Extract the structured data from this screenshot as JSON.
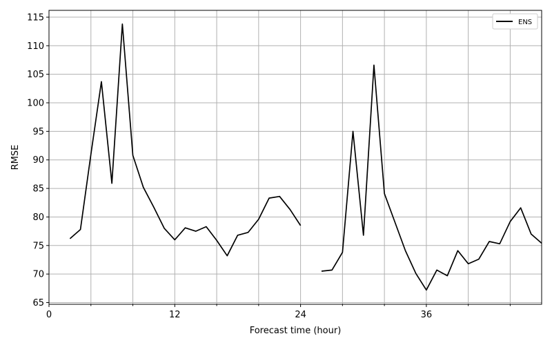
{
  "chart_data": {
    "type": "line",
    "title": "",
    "xlabel": "Forecast time (hour)",
    "ylabel": "RMSE",
    "xlim": [
      0,
      47
    ],
    "ylim": [
      64.7,
      116.2
    ],
    "xticks": [
      0,
      12,
      24,
      36
    ],
    "xticks_minor": [
      4,
      8,
      16,
      20,
      28,
      32,
      40,
      44
    ],
    "yticks": [
      65,
      70,
      75,
      80,
      85,
      90,
      95,
      100,
      105,
      110,
      115
    ],
    "grid": true,
    "legend_position": "top-right",
    "series": [
      {
        "name": "ENS",
        "color": "#000000",
        "segments": [
          {
            "x": [
              2,
              3,
              4,
              5,
              6,
              7,
              8,
              9,
              10,
              11,
              12,
              13,
              14,
              15,
              16,
              17,
              18,
              19,
              20,
              21,
              22,
              23,
              24
            ],
            "y": [
              76.2,
              77.8,
              91.0,
              103.7,
              85.9,
              113.8,
              90.8,
              85.2,
              81.7,
              78.0,
              76.0,
              78.1,
              77.5,
              78.3,
              75.9,
              73.2,
              76.8,
              77.3,
              79.6,
              83.3,
              83.6,
              81.3,
              78.5
            ]
          },
          {
            "x": [
              26,
              27,
              28,
              29,
              30,
              31,
              32,
              33,
              34,
              35,
              36,
              37,
              38,
              39,
              40,
              41,
              42,
              43,
              44,
              45,
              46,
              47
            ],
            "y": [
              70.5,
              70.7,
              73.8,
              95.0,
              76.8,
              106.6,
              84.1,
              79.1,
              74.1,
              70.1,
              67.2,
              70.7,
              69.7,
              74.1,
              71.8,
              72.6,
              75.7,
              75.3,
              79.2,
              81.6,
              77.0,
              75.4
            ]
          }
        ]
      }
    ]
  }
}
